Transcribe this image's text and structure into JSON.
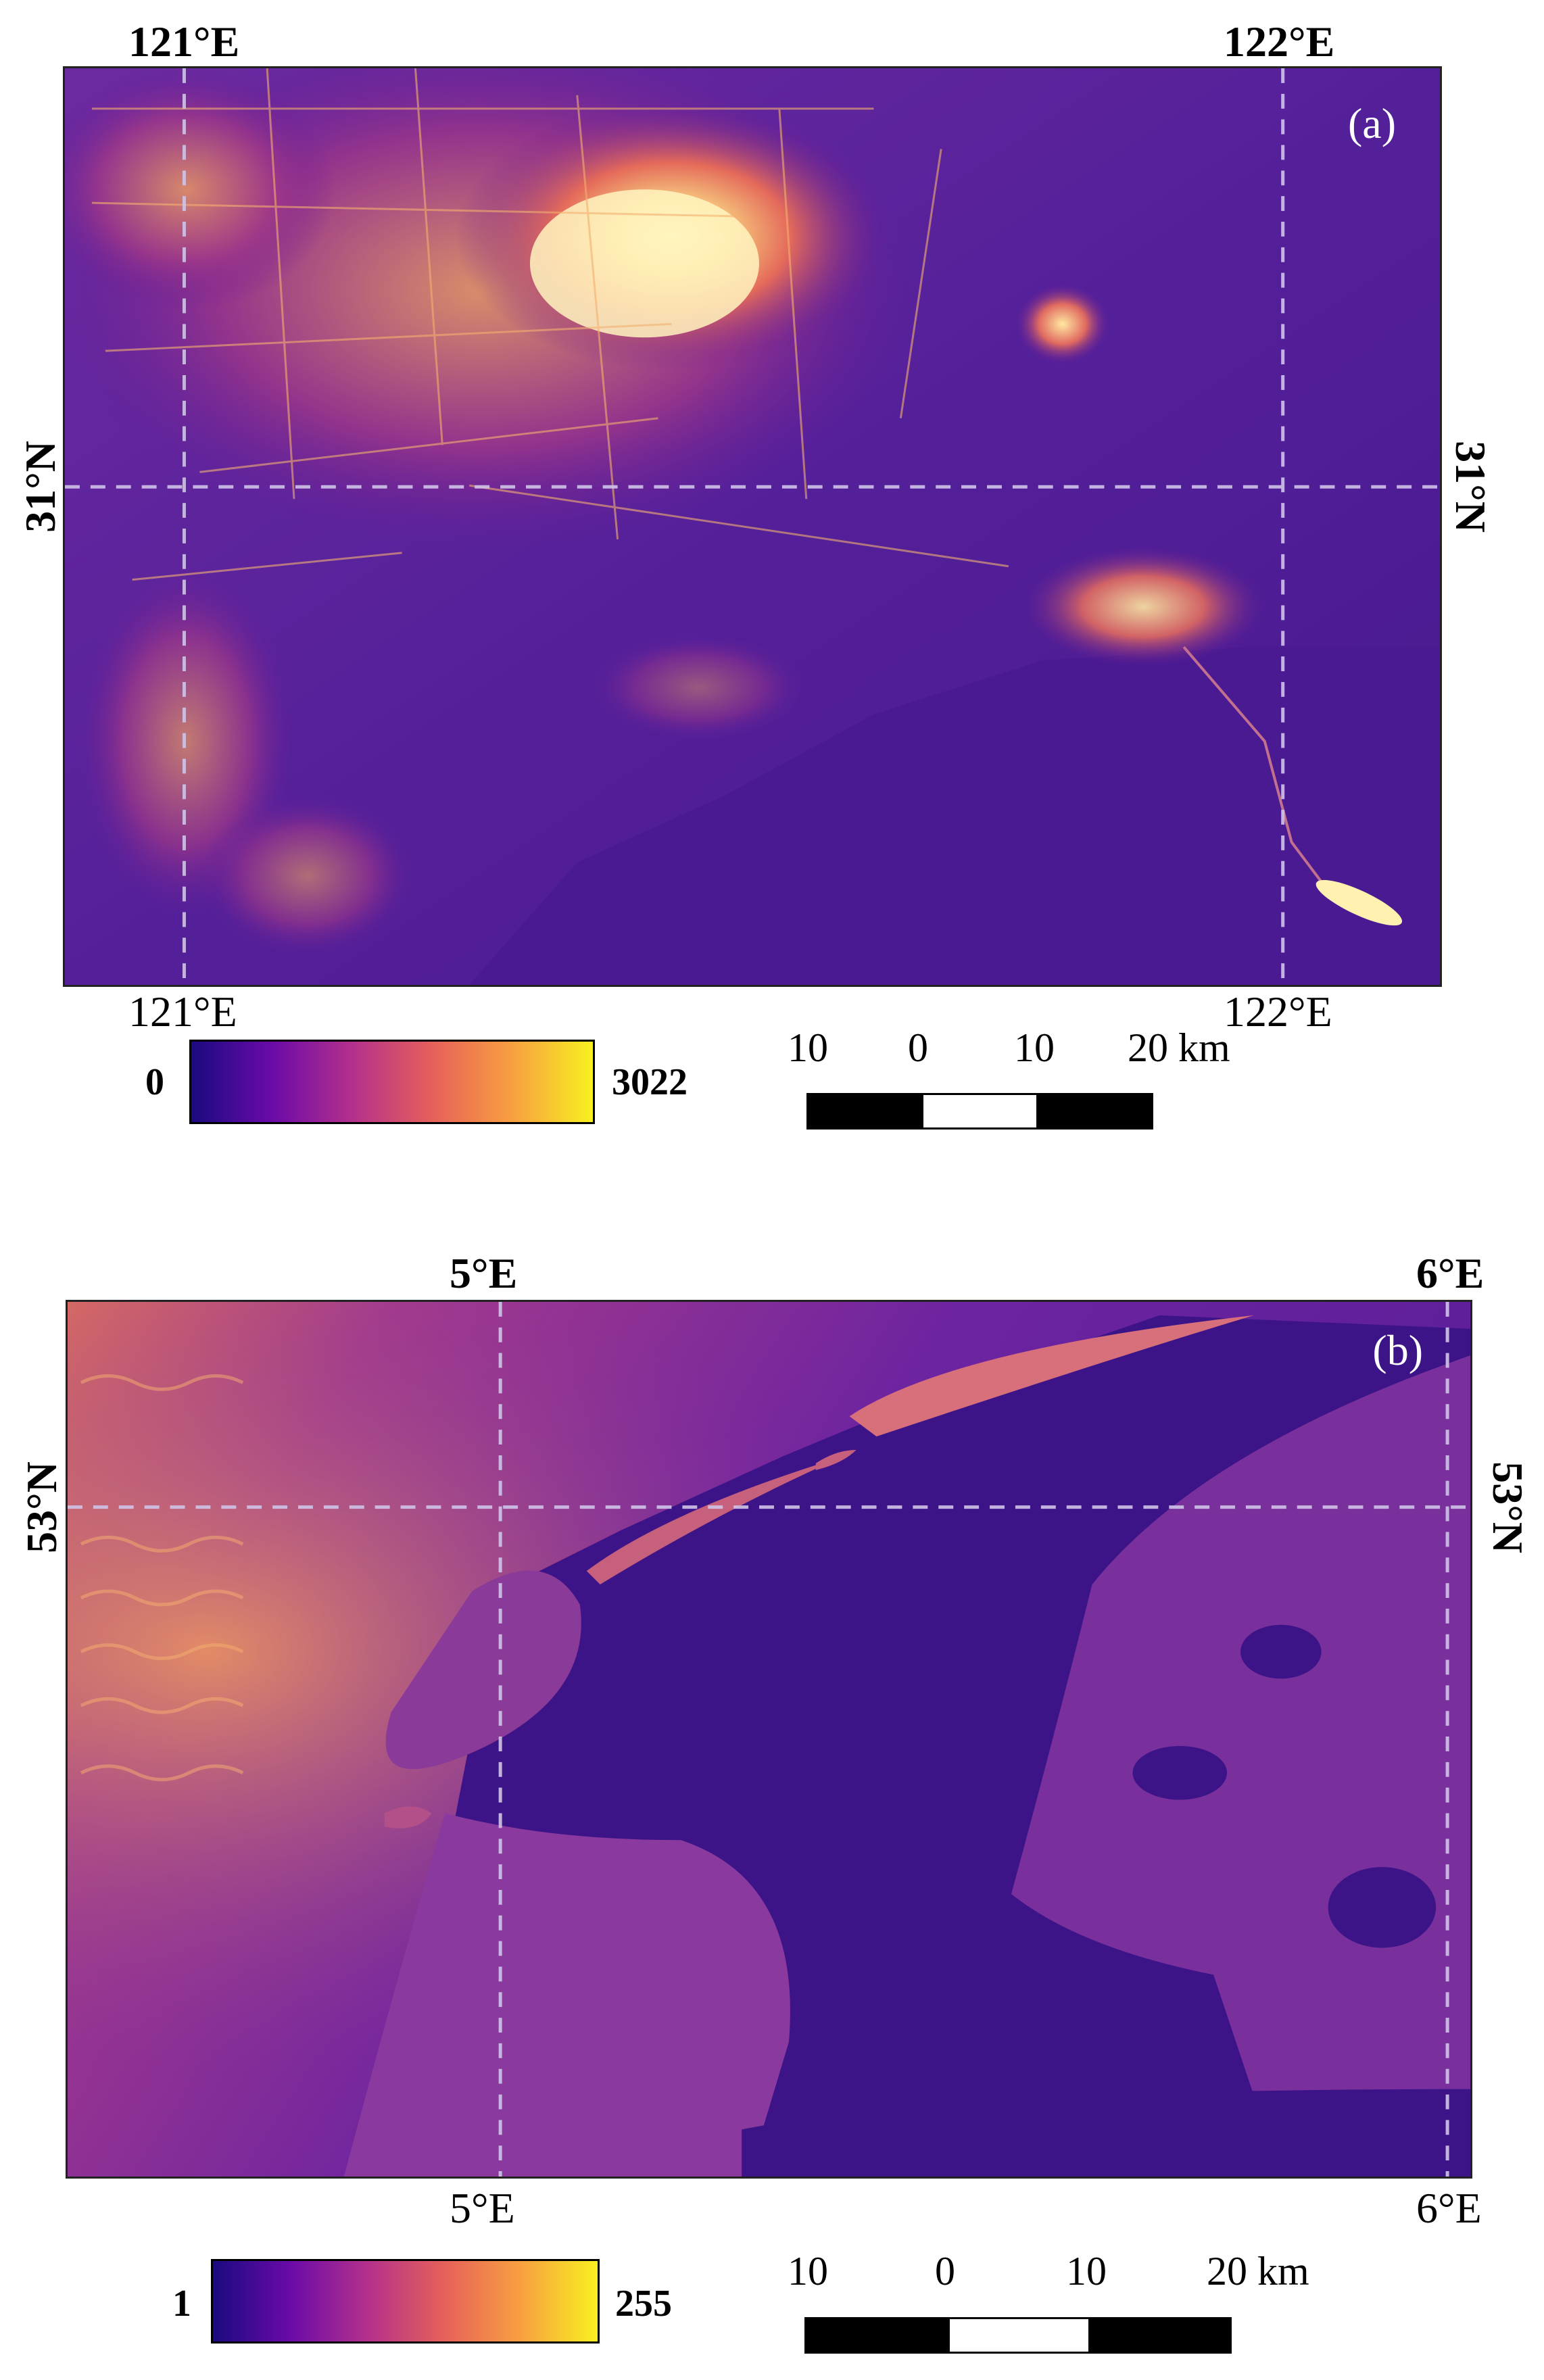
{
  "panels": [
    {
      "label": "(a)",
      "top_lon_labels": [
        "121°E",
        "122°E"
      ],
      "bottom_lon_labels": [
        "121°E",
        "122°E"
      ],
      "left_lat_label": "31°N",
      "right_lat_label": "31°N",
      "colorbar": {
        "min": "0",
        "max": "3022"
      },
      "scalebar": {
        "labels": [
          "10",
          "0",
          "10",
          "20 km"
        ]
      }
    },
    {
      "label": "(b)",
      "top_lon_labels": [
        "5°E",
        "6°E"
      ],
      "bottom_lon_labels": [
        "5°E",
        "6°E"
      ],
      "left_lat_label": "53°N",
      "right_lat_label": "53°N",
      "colorbar": {
        "min": "1",
        "max": "255"
      },
      "scalebar": {
        "labels": [
          "10",
          "0",
          "10",
          "20 km"
        ]
      }
    }
  ],
  "colormap": {
    "name": "plasma-like",
    "stops": [
      "#1a0a80",
      "#6a0aa8",
      "#b3308c",
      "#e6605a",
      "#f8a040",
      "#f8f020"
    ]
  },
  "colors": {
    "water_dark": "#3b1285",
    "land_purple": "#5a1d95",
    "city_glow": "#f8d890",
    "grid_line": "#cfc3e8"
  }
}
